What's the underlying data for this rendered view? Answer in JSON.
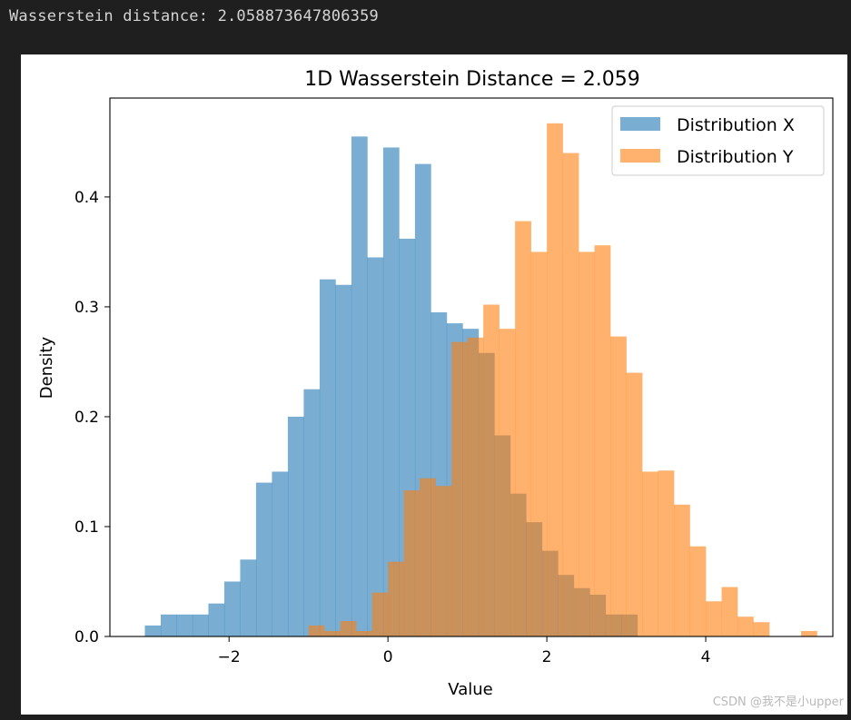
{
  "console": {
    "output_line": "Wasserstein distance: 2.058873647806359"
  },
  "watermark": "CSDN @我不是小upper",
  "chart_data": {
    "type": "bar",
    "title": "1D Wasserstein Distance = 2.059",
    "xlabel": "Value",
    "ylabel": "Density",
    "xlim": [
      -3.5,
      5.6
    ],
    "ylim": [
      0,
      0.49
    ],
    "xticks": [
      -2,
      0,
      2,
      4
    ],
    "xtick_labels": [
      "−2",
      "0",
      "2",
      "4"
    ],
    "yticks": [
      0.0,
      0.1,
      0.2,
      0.3,
      0.4
    ],
    "ytick_labels": [
      "0.0",
      "0.1",
      "0.2",
      "0.3",
      "0.4"
    ],
    "grid": false,
    "legend_position": "top-right",
    "series": [
      {
        "name": "Distribution X",
        "color": "#1f77b4",
        "alpha": 0.6,
        "bin_start": -3.06,
        "bin_width": 0.2,
        "values": [
          0.01,
          0.02,
          0.02,
          0.02,
          0.03,
          0.05,
          0.07,
          0.14,
          0.15,
          0.2,
          0.225,
          0.325,
          0.32,
          0.455,
          0.345,
          0.445,
          0.362,
          0.43,
          0.295,
          0.285,
          0.28,
          0.258,
          0.183,
          0.13,
          0.104,
          0.078,
          0.056,
          0.044,
          0.038,
          0.02,
          0.02
        ]
      },
      {
        "name": "Distribution Y",
        "color": "#ff7f0e",
        "alpha": 0.6,
        "bin_start": -1.0,
        "bin_width": 0.2,
        "values": [
          0.01,
          0.005,
          0.014,
          0.005,
          0.04,
          0.068,
          0.133,
          0.144,
          0.137,
          0.268,
          0.272,
          0.302,
          0.28,
          0.378,
          0.35,
          0.467,
          0.44,
          0.35,
          0.356,
          0.273,
          0.24,
          0.15,
          0.151,
          0.12,
          0.082,
          0.032,
          0.045,
          0.018,
          0.013,
          0.0,
          0.0,
          0.005
        ]
      }
    ]
  }
}
